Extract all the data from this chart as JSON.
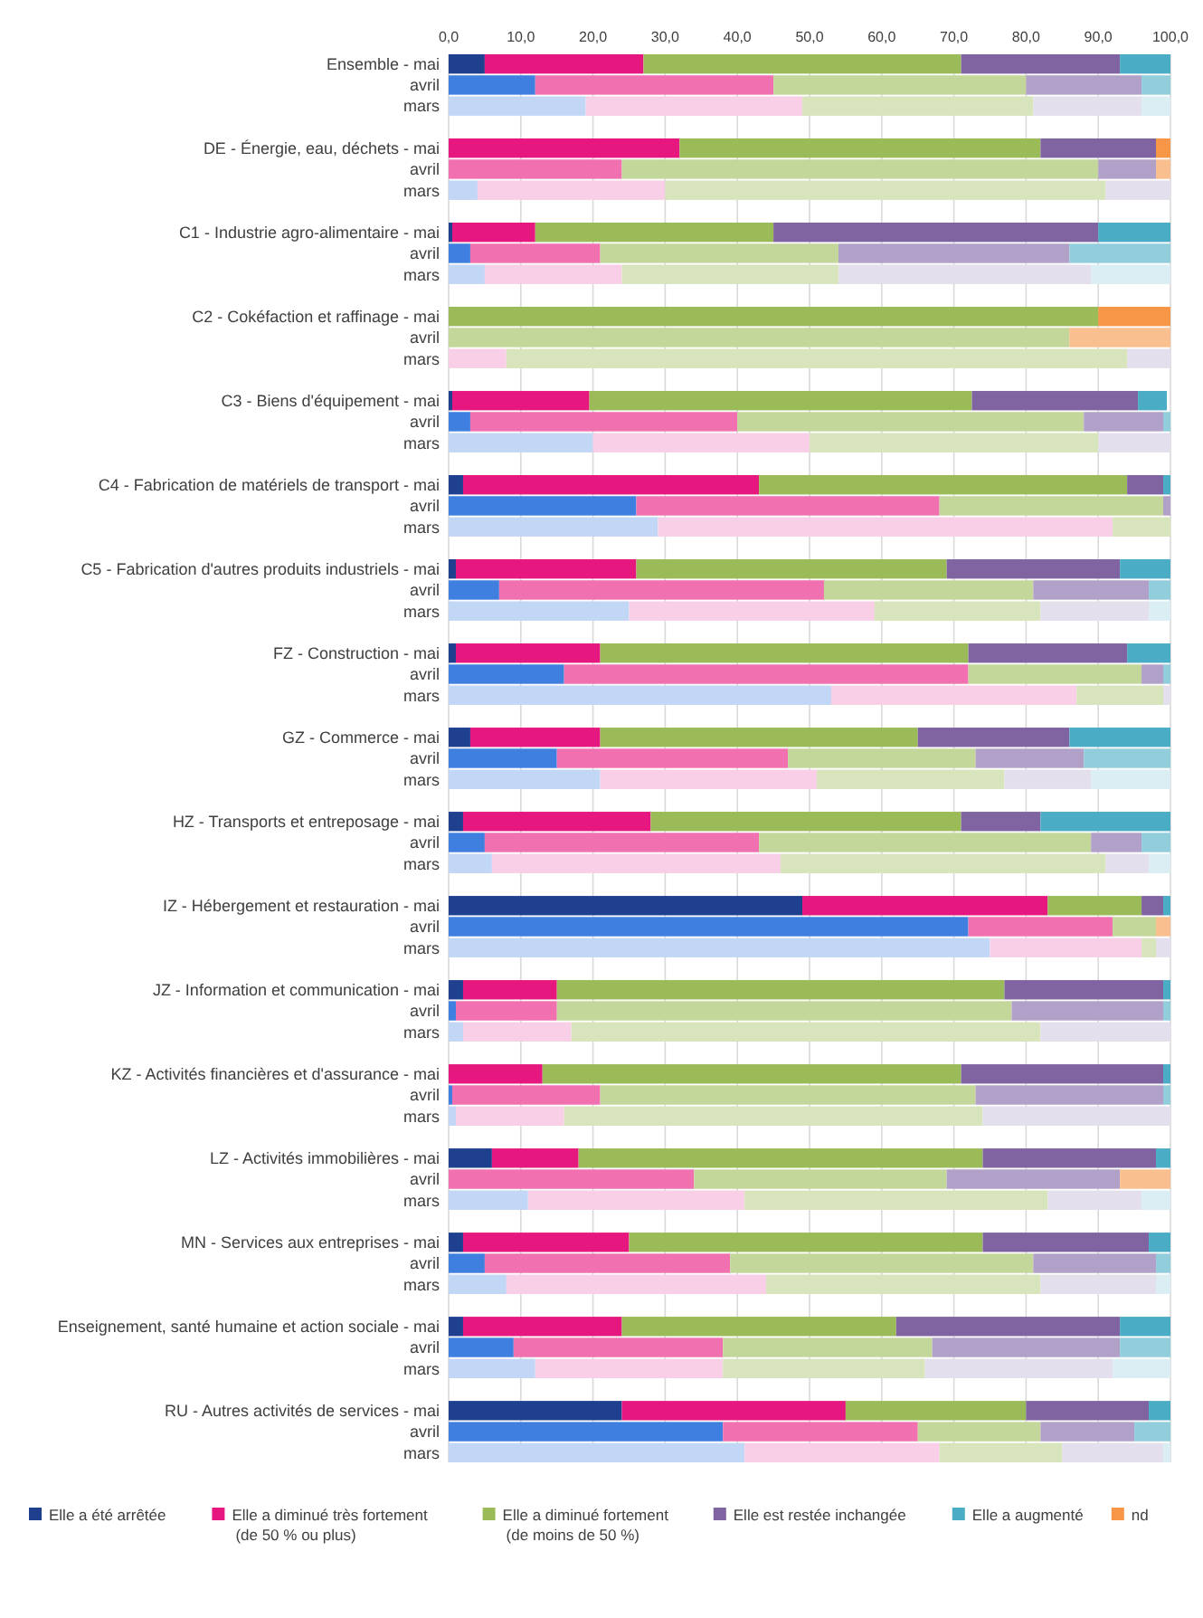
{
  "chart_data": {
    "type": "bar",
    "orientation": "horizontal",
    "stacked": true,
    "grid": "x",
    "legend": "bottom",
    "xlim": [
      0,
      100
    ],
    "xticks": [
      {
        "value": 0,
        "label": "0,0"
      },
      {
        "value": 10,
        "label": "10,0"
      },
      {
        "value": 20,
        "label": "20,0"
      },
      {
        "value": 30,
        "label": "30,0"
      },
      {
        "value": 40,
        "label": "40,0"
      },
      {
        "value": 50,
        "label": "50,0"
      },
      {
        "value": 60,
        "label": "60,0"
      },
      {
        "value": 70,
        "label": "70,0"
      },
      {
        "value": 80,
        "label": "80,0"
      },
      {
        "value": 90,
        "label": "90,0"
      },
      {
        "value": 100,
        "label": "100,0"
      }
    ],
    "categories": [
      "Ensemble - mai",
      "avril",
      "mars",
      null,
      "DE - Énergie, eau, déchets - mai",
      "avril",
      "mars",
      null,
      "C1 - Industrie agro-alimentaire - mai",
      "avril",
      "mars",
      null,
      "C2 - Cokéfaction et raffinage - mai",
      "avril",
      "mars",
      null,
      "C3 - Biens d'équipement - mai",
      "avril",
      "mars",
      null,
      "C4 - Fabrication de matériels de transport - mai",
      "avril",
      "mars",
      null,
      "C5 - Fabrication d'autres produits industriels - mai",
      "avril",
      "mars",
      null,
      "FZ - Construction - mai",
      "avril",
      "mars",
      null,
      "GZ - Commerce - mai",
      "avril",
      "mars",
      null,
      "HZ - Transports et entreposage - mai",
      "avril",
      "mars",
      null,
      "IZ - Hébergement et restauration - mai",
      "avril",
      "mars",
      null,
      "JZ - Information et communication - mai",
      "avril",
      "mars",
      null,
      "KZ - Activités financières et d'assurance - mai",
      "avril",
      "mars",
      null,
      "LZ - Activités immobilières - mai",
      "avril",
      "mars",
      null,
      "MN - Services aux entreprises - mai",
      "avril",
      "mars",
      null,
      "Enseignement, santé humaine et action sociale - mai",
      "avril",
      "mars",
      null,
      "RU - Autres activités de services - mai",
      "avril",
      "mars"
    ],
    "series": [
      {
        "name": "Elle a été arrêtée",
        "color": "#1f3f8f",
        "values": [
          5,
          12,
          19,
          null,
          0,
          0,
          4,
          null,
          0.5,
          3,
          5,
          null,
          0,
          0,
          0,
          null,
          0.5,
          3,
          20,
          null,
          2,
          26,
          29,
          null,
          1,
          7,
          25,
          null,
          1,
          16,
          53,
          null,
          3,
          15,
          21,
          null,
          2,
          5,
          6,
          null,
          49,
          72,
          75,
          null,
          2,
          1,
          2,
          null,
          0,
          0.5,
          1,
          null,
          6,
          0,
          11,
          null,
          2,
          5,
          8,
          null,
          2,
          9,
          12,
          null,
          24,
          38,
          41
        ],
        "colors": [
          "#1f3f8f",
          "#3f7fe0",
          "#c2d6f5",
          null,
          "#1f3f8f",
          "#3f7fe0",
          "#c2d6f5",
          null,
          "#1f3f8f",
          "#3f7fe0",
          "#c2d6f5",
          null,
          "#1f3f8f",
          "#3f7fe0",
          "#c2d6f5",
          null,
          "#1f3f8f",
          "#3f7fe0",
          "#c2d6f5",
          null,
          "#1f3f8f",
          "#3f7fe0",
          "#c2d6f5",
          null,
          "#1f3f8f",
          "#3f7fe0",
          "#c2d6f5",
          null,
          "#1f3f8f",
          "#3f7fe0",
          "#c2d6f5",
          null,
          "#1f3f8f",
          "#3f7fe0",
          "#c2d6f5",
          null,
          "#1f3f8f",
          "#3f7fe0",
          "#c2d6f5",
          null,
          "#1f3f8f",
          "#3f7fe0",
          "#c2d6f5",
          null,
          "#1f3f8f",
          "#3f7fe0",
          "#c2d6f5",
          null,
          "#1f3f8f",
          "#3f7fe0",
          "#c2d6f5",
          null,
          "#1f3f8f",
          "#3f7fe0",
          "#c2d6f5",
          null,
          "#1f3f8f",
          "#3f7fe0",
          "#c2d6f5",
          null,
          "#1f3f8f",
          "#3f7fe0",
          "#c2d6f5",
          null,
          "#1f3f8f",
          "#3f7fe0",
          "#c2d6f5"
        ]
      },
      {
        "name": "Elle a diminué très fortement (de 50 % ou plus)",
        "color": "#e6187f",
        "values": [
          22,
          33,
          30,
          null,
          32,
          24,
          26,
          null,
          11.5,
          18,
          19,
          null,
          0,
          0,
          8,
          null,
          19,
          37,
          30,
          null,
          41,
          42,
          63,
          null,
          25,
          45,
          34,
          null,
          20,
          56,
          34,
          null,
          18,
          32,
          30,
          null,
          26,
          38,
          40,
          null,
          34,
          20,
          21,
          null,
          13,
          14,
          15,
          null,
          13,
          20.5,
          15,
          null,
          12,
          34,
          30,
          null,
          23,
          34,
          36,
          null,
          22,
          29,
          26,
          null,
          31,
          27,
          27
        ],
        "colors": [
          "#e6187f",
          "#f070b0",
          "#f8cfe6",
          null,
          "#e6187f",
          "#f070b0",
          "#f8cfe6",
          null,
          "#e6187f",
          "#f070b0",
          "#f8cfe6",
          null,
          "#e6187f",
          "#f070b0",
          "#f8cfe6",
          null,
          "#e6187f",
          "#f070b0",
          "#f8cfe6",
          null,
          "#e6187f",
          "#f070b0",
          "#f8cfe6",
          null,
          "#e6187f",
          "#f070b0",
          "#f8cfe6",
          null,
          "#e6187f",
          "#f070b0",
          "#f8cfe6",
          null,
          "#e6187f",
          "#f070b0",
          "#f8cfe6",
          null,
          "#e6187f",
          "#f070b0",
          "#f8cfe6",
          null,
          "#e6187f",
          "#f070b0",
          "#f8cfe6",
          null,
          "#e6187f",
          "#f070b0",
          "#f8cfe6",
          null,
          "#e6187f",
          "#f070b0",
          "#f8cfe6",
          null,
          "#e6187f",
          "#f070b0",
          "#f8cfe6",
          null,
          "#e6187f",
          "#f070b0",
          "#f8cfe6",
          null,
          "#e6187f",
          "#f070b0",
          "#f8cfe6",
          null,
          "#e6187f",
          "#f070b0",
          "#f8cfe6"
        ]
      },
      {
        "name": "Elle a diminué fortement (de moins de 50 %)",
        "color": "#9bbb59",
        "values": [
          44,
          35,
          32,
          null,
          50,
          66,
          61,
          null,
          33,
          33,
          30,
          null,
          90,
          86,
          86,
          null,
          53,
          48,
          40,
          null,
          51,
          31,
          8,
          null,
          43,
          29,
          23,
          null,
          51,
          24,
          12,
          null,
          44,
          26,
          26,
          null,
          43,
          46,
          45,
          null,
          13,
          6,
          2,
          null,
          62,
          63,
          65,
          null,
          58,
          52,
          58,
          null,
          56,
          35,
          42,
          null,
          49,
          42,
          38,
          null,
          38,
          29,
          28,
          null,
          25,
          17,
          17
        ],
        "colors": [
          "#9bbb59",
          "#c4d79b",
          "#d8e4bc",
          null,
          "#9bbb59",
          "#c4d79b",
          "#d8e4bc",
          null,
          "#9bbb59",
          "#c4d79b",
          "#d8e4bc",
          null,
          "#9bbb59",
          "#c4d79b",
          "#d8e4bc",
          null,
          "#9bbb59",
          "#c4d79b",
          "#d8e4bc",
          null,
          "#9bbb59",
          "#c4d79b",
          "#d8e4bc",
          null,
          "#9bbb59",
          "#c4d79b",
          "#d8e4bc",
          null,
          "#9bbb59",
          "#c4d79b",
          "#d8e4bc",
          null,
          "#9bbb59",
          "#c4d79b",
          "#d8e4bc",
          null,
          "#9bbb59",
          "#c4d79b",
          "#d8e4bc",
          null,
          "#9bbb59",
          "#c4d79b",
          "#d8e4bc",
          null,
          "#9bbb59",
          "#c4d79b",
          "#d8e4bc",
          null,
          "#9bbb59",
          "#c4d79b",
          "#d8e4bc",
          null,
          "#9bbb59",
          "#c4d79b",
          "#d8e4bc",
          null,
          "#9bbb59",
          "#c4d79b",
          "#d8e4bc",
          null,
          "#9bbb59",
          "#c4d79b",
          "#d8e4bc",
          null,
          "#9bbb59",
          "#c4d79b",
          "#d8e4bc"
        ]
      },
      {
        "name": "Elle est restée inchangée",
        "color": "#8064a2",
        "values": [
          22,
          16,
          15,
          null,
          16,
          8,
          9,
          null,
          45,
          32,
          35,
          null,
          0,
          0,
          6,
          null,
          23,
          11,
          10,
          null,
          5,
          1,
          0,
          null,
          24,
          16,
          15,
          null,
          22,
          3,
          1,
          null,
          21,
          15,
          12,
          null,
          11,
          7,
          6,
          null,
          3,
          0,
          2,
          null,
          22,
          21,
          18,
          null,
          28,
          26,
          26,
          null,
          24,
          24,
          13,
          null,
          23,
          17,
          16,
          null,
          31,
          26,
          26,
          null,
          17,
          13,
          14
        ],
        "colors": [
          "#8064a2",
          "#b1a0c7",
          "#e4dfec",
          null,
          "#8064a2",
          "#b1a0c7",
          "#e4dfec",
          null,
          "#8064a2",
          "#b1a0c7",
          "#e4dfec",
          null,
          "#8064a2",
          "#b1a0c7",
          "#e4dfec",
          null,
          "#8064a2",
          "#b1a0c7",
          "#e4dfec",
          null,
          "#8064a2",
          "#b1a0c7",
          "#e4dfec",
          null,
          "#8064a2",
          "#b1a0c7",
          "#e4dfec",
          null,
          "#8064a2",
          "#b1a0c7",
          "#e4dfec",
          null,
          "#8064a2",
          "#b1a0c7",
          "#e4dfec",
          null,
          "#8064a2",
          "#b1a0c7",
          "#e4dfec",
          null,
          "#8064a2",
          "#b1a0c7",
          "#e4dfec",
          null,
          "#8064a2",
          "#b1a0c7",
          "#e4dfec",
          null,
          "#8064a2",
          "#b1a0c7",
          "#e4dfec",
          null,
          "#8064a2",
          "#b1a0c7",
          "#e4dfec",
          null,
          "#8064a2",
          "#b1a0c7",
          "#e4dfec",
          null,
          "#8064a2",
          "#b1a0c7",
          "#e4dfec",
          null,
          "#8064a2",
          "#b1a0c7",
          "#e4dfec"
        ]
      },
      {
        "name": "Elle a augmenté",
        "color": "#4bacc6",
        "values": [
          7,
          4,
          4,
          null,
          0,
          0,
          0,
          null,
          10,
          14,
          11,
          null,
          0,
          0,
          0,
          null,
          4,
          1,
          0,
          null,
          1,
          0,
          0,
          null,
          7,
          3,
          3,
          null,
          6,
          1,
          0,
          null,
          14,
          12,
          11,
          null,
          18,
          4,
          3,
          null,
          1,
          0,
          0,
          null,
          1,
          1,
          0,
          null,
          1,
          1,
          0,
          null,
          2,
          0,
          4,
          null,
          3,
          2,
          2,
          null,
          7,
          7,
          8,
          null,
          3,
          5,
          1
        ],
        "colors": [
          "#4bacc6",
          "#92cddc",
          "#daeef3",
          null,
          "#4bacc6",
          "#92cddc",
          "#daeef3",
          null,
          "#4bacc6",
          "#92cddc",
          "#daeef3",
          null,
          "#4bacc6",
          "#92cddc",
          "#daeef3",
          null,
          "#4bacc6",
          "#92cddc",
          "#daeef3",
          null,
          "#4bacc6",
          "#92cddc",
          "#daeef3",
          null,
          "#4bacc6",
          "#92cddc",
          "#daeef3",
          null,
          "#4bacc6",
          "#92cddc",
          "#daeef3",
          null,
          "#4bacc6",
          "#92cddc",
          "#daeef3",
          null,
          "#4bacc6",
          "#92cddc",
          "#daeef3",
          null,
          "#4bacc6",
          "#92cddc",
          "#daeef3",
          null,
          "#4bacc6",
          "#92cddc",
          "#daeef3",
          null,
          "#4bacc6",
          "#92cddc",
          "#daeef3",
          null,
          "#4bacc6",
          "#92cddc",
          "#daeef3",
          null,
          "#4bacc6",
          "#92cddc",
          "#daeef3",
          null,
          "#4bacc6",
          "#92cddc",
          "#daeef3",
          null,
          "#4bacc6",
          "#92cddc",
          "#daeef3"
        ]
      },
      {
        "name": "nd",
        "color": "#f79646",
        "values": [
          0,
          0,
          0,
          null,
          2,
          2,
          0,
          null,
          0,
          0,
          0,
          null,
          10,
          14,
          0,
          null,
          0,
          0,
          0,
          null,
          0,
          0,
          0,
          null,
          0,
          0,
          0,
          null,
          0,
          0,
          0,
          null,
          0,
          0,
          0,
          null,
          0,
          0,
          0,
          null,
          0,
          2,
          0,
          null,
          0,
          0,
          0,
          null,
          0,
          0,
          0,
          null,
          0,
          7,
          0,
          null,
          0,
          0,
          0,
          null,
          0,
          0,
          0,
          null,
          0,
          0,
          0
        ],
        "colors": [
          "#f79646",
          "#fabf8f",
          "#fde9d9",
          null,
          "#f79646",
          "#fabf8f",
          "#fde9d9",
          null,
          "#f79646",
          "#fabf8f",
          "#fde9d9",
          null,
          "#f79646",
          "#fabf8f",
          "#fde9d9",
          null,
          "#f79646",
          "#fabf8f",
          "#fde9d9",
          null,
          "#f79646",
          "#fabf8f",
          "#fde9d9",
          null,
          "#f79646",
          "#fabf8f",
          "#fde9d9",
          null,
          "#f79646",
          "#fabf8f",
          "#fde9d9",
          null,
          "#f79646",
          "#fabf8f",
          "#fde9d9",
          null,
          "#f79646",
          "#fabf8f",
          "#fde9d9",
          null,
          "#f79646",
          "#fabf8f",
          "#fde9d9",
          null,
          "#f79646",
          "#fabf8f",
          "#fde9d9",
          null,
          "#f79646",
          "#fabf8f",
          "#fde9d9",
          null,
          "#f79646",
          "#fabf8f",
          "#fde9d9",
          null,
          "#f79646",
          "#fabf8f",
          "#fde9d9",
          null,
          "#f79646",
          "#fabf8f",
          "#fde9d9",
          null,
          "#f79646",
          "#fabf8f",
          "#fde9d9"
        ]
      }
    ]
  }
}
